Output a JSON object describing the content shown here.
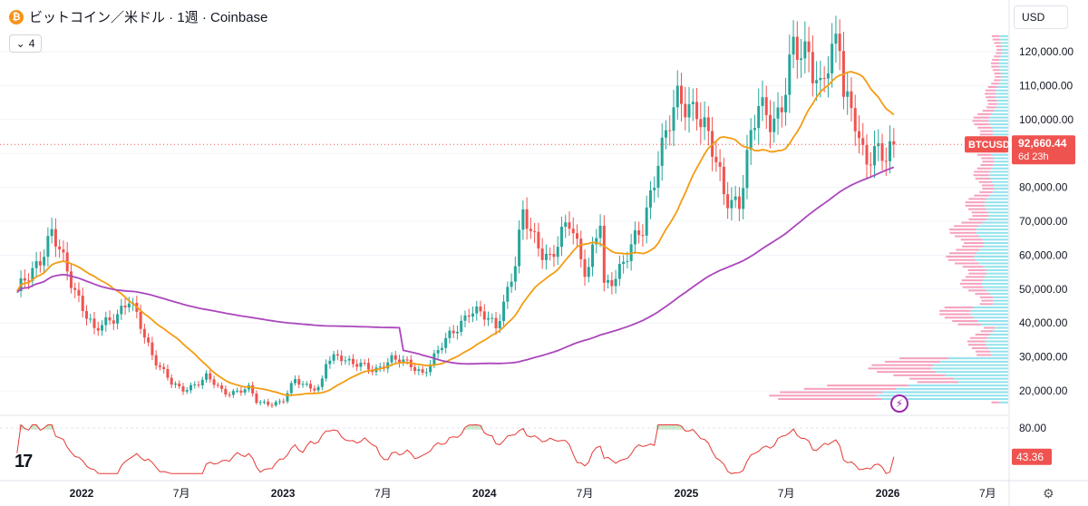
{
  "header": {
    "logo_letter": "₿",
    "title": "ビットコイン／米ドル · 1週 · Coinbase",
    "indicator_count": "4",
    "indicator_chevron": "⌄"
  },
  "currency_select": "USD",
  "tradingview_logo": "17",
  "chart_data": {
    "type": "candlestick",
    "symbol": "BTCUSD",
    "price_scale": [
      120000,
      110000,
      100000,
      90000,
      80000,
      70000,
      60000,
      50000,
      40000,
      30000,
      20000
    ],
    "price_labels": [
      "120,000.00",
      "110,000.00",
      "100,000.00",
      "90,000.00",
      "80,000.00",
      "70,000.00",
      "60,000.00",
      "50,000.00",
      "40,000.00",
      "30,000.00",
      "20,000.00"
    ],
    "ylim": [
      16000,
      126000
    ],
    "time_axis": [
      {
        "label": "2022",
        "date": "2022-01-01"
      },
      {
        "label": "7月",
        "date": "2022-07-01"
      },
      {
        "label": "2023",
        "date": "2023-01-01"
      },
      {
        "label": "7月",
        "date": "2023-07-01"
      },
      {
        "label": "2024",
        "date": "2024-01-01"
      },
      {
        "label": "7月",
        "date": "2024-07-01"
      },
      {
        "label": "2025",
        "date": "2025-01-01"
      },
      {
        "label": "7月",
        "date": "2025-07-01"
      },
      {
        "label": "2026",
        "date": "2026-01-01"
      },
      {
        "label": "7月",
        "date": "2026-07-01"
      }
    ],
    "price_path": [
      [
        "2021-09-01",
        47000
      ],
      [
        "2021-10-01",
        55000
      ],
      [
        "2021-11-08",
        66000
      ],
      [
        "2021-12-01",
        57000
      ],
      [
        "2022-01-01",
        46000
      ],
      [
        "2022-01-24",
        37000
      ],
      [
        "2022-03-28",
        46500
      ],
      [
        "2022-05-09",
        31000
      ],
      [
        "2022-06-13",
        22000
      ],
      [
        "2022-07-01",
        20000
      ],
      [
        "2022-08-15",
        24000
      ],
      [
        "2022-09-15",
        19500
      ],
      [
        "2022-11-01",
        20500
      ],
      [
        "2022-11-15",
        16500
      ],
      [
        "2022-12-31",
        16600
      ],
      [
        "2023-01-23",
        23000
      ],
      [
        "2023-03-10",
        20500
      ],
      [
        "2023-03-20",
        28000
      ],
      [
        "2023-04-14",
        30500
      ],
      [
        "2023-06-15",
        25500
      ],
      [
        "2023-07-15",
        30000
      ],
      [
        "2023-09-11",
        25500
      ],
      [
        "2023-10-23",
        34500
      ],
      [
        "2023-12-05",
        44000
      ],
      [
        "2024-01-22",
        39500
      ],
      [
        "2024-02-26",
        57000
      ],
      [
        "2024-03-11",
        71000
      ],
      [
        "2024-05-01",
        58000
      ],
      [
        "2024-06-05",
        71000
      ],
      [
        "2024-07-05",
        54000
      ],
      [
        "2024-07-29",
        69000
      ],
      [
        "2024-08-05",
        50000
      ],
      [
        "2024-10-14",
        67000
      ],
      [
        "2024-11-11",
        90000
      ],
      [
        "2024-12-16",
        104000
      ],
      [
        "2025-01-20",
        105000
      ],
      [
        "2025-02-24",
        86000
      ],
      [
        "2025-03-10",
        78500
      ],
      [
        "2025-04-07",
        76000
      ],
      [
        "2025-05-12",
        104000
      ],
      [
        "2025-06-20",
        101000
      ],
      [
        "2025-07-14",
        119000
      ],
      [
        "2025-08-11",
        122000
      ],
      [
        "2025-09-01",
        108000
      ],
      [
        "2025-10-06",
        124000
      ],
      [
        "2025-10-13",
        111000
      ],
      [
        "2025-11-03",
        101000
      ],
      [
        "2025-11-21",
        84000
      ],
      [
        "2025-12-08",
        90000
      ],
      [
        "2026-01-05",
        93000
      ],
      [
        "2026-01-12",
        92660
      ]
    ],
    "last_price": {
      "symbol": "BTCUSD",
      "value": "92,660.44",
      "countdown": "6d 23h",
      "price": 92660.44
    },
    "moving_averages": [
      {
        "period": 20,
        "color": "#f39c12"
      },
      {
        "period": 100,
        "color": "#ab47bc"
      }
    ],
    "candle_colors": {
      "up": "#26a69a",
      "down": "#ef5350"
    },
    "volume_profile": {
      "colors": {
        "up": "#7fdde9",
        "down": "#f48fb1"
      },
      "center_price": 62000,
      "spike_price": 19500
    },
    "oscillator": {
      "level_label": "80.00",
      "current_label": "43.36",
      "current": 43.36,
      "color": "#e53935",
      "fill_overbought": "#c8e6c9"
    }
  }
}
